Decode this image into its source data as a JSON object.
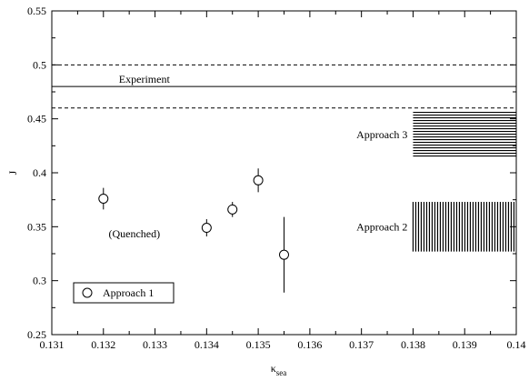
{
  "chart_data": {
    "type": "scatter",
    "title": "",
    "xlabel": "κ",
    "xlabel_sub": "sea",
    "ylabel": "J",
    "xlim": [
      0.131,
      0.14
    ],
    "ylim": [
      0.25,
      0.55
    ],
    "x_ticks": [
      {
        "value": 0.131,
        "label": "0.131"
      },
      {
        "value": 0.132,
        "label": "0.132"
      },
      {
        "value": 0.133,
        "label": "0.133"
      },
      {
        "value": 0.134,
        "label": "0.134"
      },
      {
        "value": 0.135,
        "label": "0.135"
      },
      {
        "value": 0.136,
        "label": "0.136"
      },
      {
        "value": 0.137,
        "label": "0.137"
      },
      {
        "value": 0.138,
        "label": "0.138"
      },
      {
        "value": 0.139,
        "label": "0.139"
      },
      {
        "value": 0.14,
        "label": "0.14"
      }
    ],
    "y_ticks": [
      {
        "value": 0.25,
        "label": "0.25"
      },
      {
        "value": 0.3,
        "label": "0.3"
      },
      {
        "value": 0.35,
        "label": "0.35"
      },
      {
        "value": 0.4,
        "label": "0.4"
      },
      {
        "value": 0.45,
        "label": "0.45"
      },
      {
        "value": 0.5,
        "label": "0.5"
      },
      {
        "value": 0.55,
        "label": "0.55"
      }
    ],
    "grid": false,
    "legend_placement": "bottom-left",
    "series": [
      {
        "name": "Approach 1",
        "marker": "open-circle",
        "points": [
          {
            "x": 0.132,
            "y": 0.376,
            "err": 0.01
          },
          {
            "x": 0.134,
            "y": 0.349,
            "err": 0.008
          },
          {
            "x": 0.1345,
            "y": 0.366,
            "err": 0.007
          },
          {
            "x": 0.135,
            "y": 0.393,
            "err": 0.011
          },
          {
            "x": 0.1355,
            "y": 0.324,
            "err": 0.035
          }
        ]
      }
    ],
    "reference_lines": [
      {
        "label": "Experiment",
        "y": 0.48,
        "style": "solid"
      },
      {
        "y": 0.5,
        "style": "dashed"
      },
      {
        "y": 0.46,
        "style": "dashed"
      }
    ],
    "bands": [
      {
        "label": "Approach 3",
        "x_range": [
          0.138,
          0.14
        ],
        "y_range": [
          0.415,
          0.456
        ],
        "hatch": "horizontal"
      },
      {
        "label": "Approach 2",
        "x_range": [
          0.138,
          0.14
        ],
        "y_range": [
          0.327,
          0.373
        ],
        "hatch": "vertical"
      }
    ],
    "annotations": [
      {
        "text": "(Quenched)",
        "x": 0.1321,
        "y": 0.34
      }
    ]
  }
}
